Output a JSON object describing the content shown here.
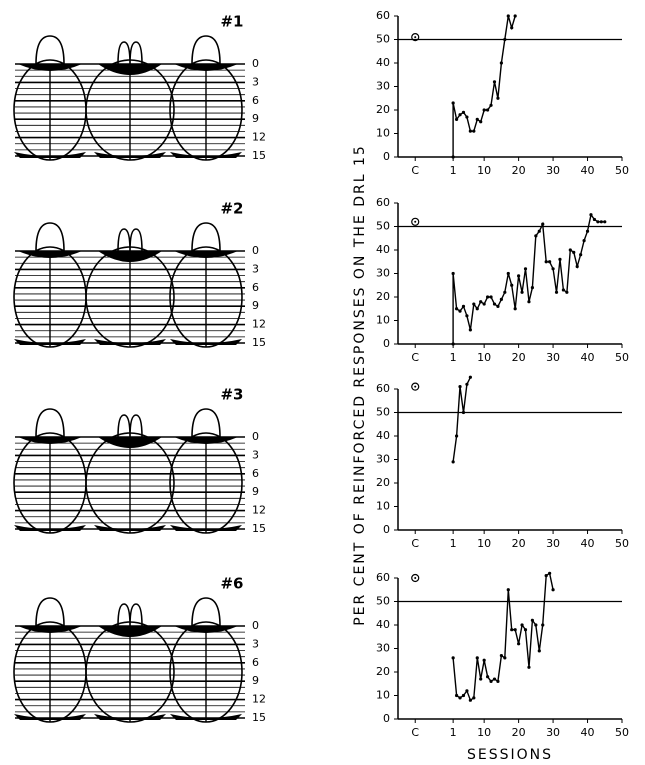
{
  "y_axis_label": "PER CENT OF REINFORCED RESPONSES ON THE DRL 15",
  "x_axis_label": "SESSIONS",
  "depth_scale": [
    "0",
    "3",
    "6",
    "9",
    "12",
    "15"
  ],
  "chart_data": [
    {
      "type": "line",
      "title": "#1",
      "color": "#000000",
      "x": [
        1,
        1,
        2,
        3,
        4,
        5,
        6,
        7,
        8,
        9,
        10,
        11,
        12,
        13,
        14,
        15,
        16,
        17,
        18,
        19
      ],
      "values": [
        0,
        23,
        16,
        18,
        19,
        17,
        11,
        11,
        16,
        15,
        20,
        20,
        22,
        32,
        25,
        40,
        50,
        60,
        55,
        60
      ],
      "control": 51,
      "reference_line": 50,
      "xlim": [
        -15,
        50
      ],
      "xticks": [
        {
          "value": -10,
          "label": "C"
        },
        1,
        10,
        20,
        30,
        40,
        50
      ],
      "ylim": [
        0,
        60
      ],
      "yticks": [
        0,
        10,
        20,
        30,
        40,
        50,
        60
      ]
    },
    {
      "type": "line",
      "title": "#2",
      "color": "#000000",
      "x": [
        1,
        1,
        2,
        3,
        4,
        5,
        6,
        7,
        8,
        9,
        10,
        11,
        12,
        13,
        14,
        15,
        16,
        17,
        18,
        19,
        20,
        21,
        22,
        23,
        24,
        25,
        26,
        27,
        28,
        29,
        30,
        31,
        32,
        33,
        34,
        35,
        36,
        37,
        38,
        39,
        40,
        41,
        42,
        43,
        44,
        45
      ],
      "values": [
        0,
        30,
        15,
        14,
        16,
        12,
        6,
        17,
        15,
        18,
        17,
        20,
        20,
        17,
        16,
        19,
        22,
        30,
        25,
        15,
        29,
        22,
        32,
        18,
        24,
        46,
        48,
        51,
        35,
        35,
        32,
        22,
        36,
        23,
        22,
        40,
        39,
        33,
        38,
        44,
        48,
        55,
        53,
        52,
        52,
        52
      ],
      "control": 52,
      "reference_line": 50,
      "xlim": [
        -15,
        50
      ],
      "xticks": [
        {
          "value": -10,
          "label": "C"
        },
        1,
        10,
        20,
        30,
        40,
        50
      ],
      "ylim": [
        0,
        60
      ],
      "yticks": [
        0,
        10,
        20,
        30,
        40,
        50,
        60
      ]
    },
    {
      "type": "line",
      "title": "#3",
      "color": "#000000",
      "x": [
        1,
        2,
        3,
        4,
        5,
        6
      ],
      "values": [
        29,
        40,
        61,
        50,
        62,
        65
      ],
      "control": 61,
      "reference_line": 50,
      "xlim": [
        -15,
        50
      ],
      "xticks": [
        {
          "value": -10,
          "label": "C"
        },
        1,
        10,
        20,
        30,
        40,
        50
      ],
      "ylim": [
        0,
        60
      ],
      "yticks": [
        0,
        10,
        20,
        30,
        40,
        50,
        60
      ]
    },
    {
      "type": "line",
      "title": "#6",
      "color": "#000000",
      "x": [
        1,
        2,
        3,
        4,
        5,
        6,
        7,
        8,
        9,
        10,
        11,
        12,
        13,
        14,
        15,
        16,
        17,
        18,
        19,
        20,
        21,
        22,
        23,
        24,
        25,
        26,
        27,
        28,
        29,
        30
      ],
      "values": [
        26,
        10,
        9,
        10,
        12,
        8,
        9,
        26,
        17,
        25,
        18,
        16,
        17,
        16,
        27,
        26,
        55,
        38,
        38,
        32,
        40,
        38,
        22,
        42,
        40,
        29,
        40,
        61,
        62,
        55
      ],
      "control": 60,
      "reference_line": 50,
      "xlim": [
        -15,
        50
      ],
      "xticks": [
        {
          "value": -10,
          "label": "C"
        },
        1,
        10,
        20,
        30,
        40,
        50
      ],
      "ylim": [
        0,
        60
      ],
      "yticks": [
        0,
        10,
        20,
        30,
        40,
        50,
        60
      ]
    }
  ]
}
